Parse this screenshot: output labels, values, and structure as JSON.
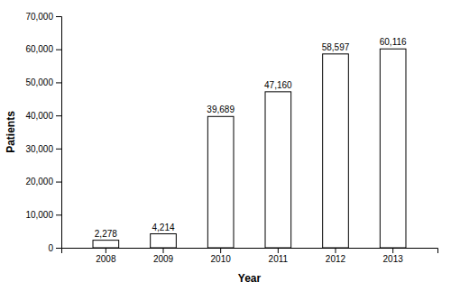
{
  "chart_data": {
    "type": "bar",
    "categories": [
      "2008",
      "2009",
      "2010",
      "2011",
      "2012",
      "2013"
    ],
    "values": [
      2278,
      4214,
      39689,
      47160,
      58597,
      60116
    ],
    "value_labels": [
      "2,278",
      "4,214",
      "39,689",
      "47,160",
      "58,597",
      "60,116"
    ],
    "data_labels": true,
    "color": "#ffffff",
    "xlabel": "Year",
    "ylabel": "Patients",
    "ylim": [
      0,
      70000
    ],
    "yticks": [
      0,
      {
        "value": 10000,
        "label": "10,000"
      },
      {
        "value": 20000,
        "label": "20,000"
      },
      {
        "value": 30000,
        "label": "30,000"
      },
      {
        "value": 40000,
        "label": "40,000"
      },
      {
        "value": 50000,
        "label": "50,000"
      },
      {
        "value": 60000,
        "label": "60,000"
      },
      {
        "value": 70000,
        "label": "70,000"
      }
    ],
    "grid": false
  }
}
